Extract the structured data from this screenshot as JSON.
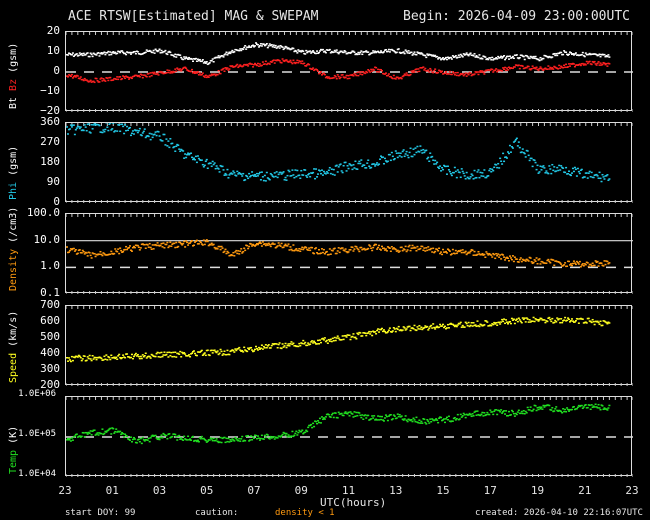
{
  "header": {
    "title": "ACE RTSW[Estimated] MAG & SWEPAM",
    "begin": "Begin: 2026-04-09 23:00:00UTC"
  },
  "panels": [
    {
      "id": "mag",
      "ylabel_parts": [
        {
          "text": "Bt",
          "color": "#ffffff"
        },
        {
          "text": "Bz",
          "color": "#ff2020"
        },
        {
          "text": "(gsm)",
          "color": "#ffffff"
        }
      ],
      "ticks": [
        "20",
        "10",
        "0",
        "−10",
        "−20"
      ]
    },
    {
      "id": "phi",
      "ylabel_parts": [
        {
          "text": "Phi",
          "color": "#22c8e6"
        },
        {
          "text": "(gsm)",
          "color": "#ffffff"
        }
      ],
      "ticks": [
        "360",
        "270",
        "180",
        "90",
        "0"
      ]
    },
    {
      "id": "density",
      "ylabel_parts": [
        {
          "text": "Density",
          "color": "#ff9a10"
        },
        {
          "text": "(/cm3)",
          "color": "#ffffff"
        }
      ],
      "ticks": [
        "100.0",
        "10.0",
        "1.0",
        "0.1"
      ]
    },
    {
      "id": "speed",
      "ylabel_parts": [
        {
          "text": "Speed",
          "color": "#ffff20"
        },
        {
          "text": "(km/s)",
          "color": "#ffffff"
        }
      ],
      "ticks": [
        "700",
        "600",
        "500",
        "400",
        "300",
        "200"
      ]
    },
    {
      "id": "temp",
      "ylabel_parts": [
        {
          "text": "Temp",
          "color": "#20e020"
        },
        {
          "text": "(K)",
          "color": "#ffffff"
        }
      ],
      "ticks": [
        "1.0E+06",
        "1.0E+05",
        "1.0E+04"
      ]
    }
  ],
  "xaxis": {
    "ticks": [
      "23",
      "01",
      "03",
      "05",
      "07",
      "09",
      "11",
      "13",
      "15",
      "17",
      "19",
      "21",
      "23"
    ],
    "title": "UTC(hours)"
  },
  "footer": {
    "start_doy": "start DOY:  99",
    "caution": "caution:",
    "density_note": "density < 1",
    "created": "created: 2026-04-10 22:16:07UTC"
  },
  "colors": {
    "bt": "#ffffff",
    "bz": "#ff2020",
    "phi": "#22c8e6",
    "density": "#ff9a10",
    "speed": "#ffff20",
    "temp": "#20e020"
  },
  "chart_data": [
    {
      "type": "scatter",
      "title": "Bt / Bz (gsm)",
      "ylabel": "nT",
      "ylim": [
        -20,
        20
      ],
      "x": [
        23,
        0,
        1,
        2,
        3,
        4,
        5,
        6,
        7,
        8,
        9,
        10,
        11,
        12,
        13,
        14,
        15,
        16,
        17,
        18,
        19,
        20,
        21,
        22
      ],
      "series": [
        {
          "name": "Bt",
          "values": [
            9,
            9,
            10,
            10,
            11,
            7,
            5,
            11,
            14,
            13,
            10,
            11,
            10,
            10,
            11,
            9,
            7,
            9,
            7,
            8,
            7,
            10,
            9,
            8
          ]
        },
        {
          "name": "Bz",
          "values": [
            -1,
            -4,
            -3,
            -2,
            0,
            2,
            -2,
            3,
            4,
            6,
            5,
            -2,
            -2,
            2,
            -3,
            2,
            0,
            -1,
            1,
            3,
            2,
            3,
            5,
            4
          ]
        }
      ]
    },
    {
      "type": "scatter",
      "title": "Phi (gsm)",
      "ylabel": "deg",
      "ylim": [
        0,
        360
      ],
      "x": [
        23,
        0,
        1,
        2,
        3,
        4,
        5,
        6,
        7,
        8,
        9,
        10,
        11,
        12,
        13,
        14,
        15,
        16,
        17,
        18,
        19,
        20,
        21,
        22
      ],
      "values": [
        330,
        340,
        345,
        320,
        300,
        220,
        180,
        130,
        125,
        125,
        135,
        135,
        175,
        180,
        220,
        240,
        150,
        130,
        140,
        280,
        150,
        160,
        125,
        120
      ]
    },
    {
      "type": "scatter",
      "title": "Density (/cm3)",
      "ylabel": "/cm3",
      "ylim": [
        0.1,
        100
      ],
      "scale": "log",
      "x": [
        23,
        0,
        1,
        2,
        3,
        4,
        5,
        6,
        7,
        8,
        9,
        10,
        11,
        12,
        13,
        14,
        15,
        16,
        17,
        18,
        19,
        20,
        21,
        22
      ],
      "values": [
        5,
        3,
        4,
        6,
        7,
        8,
        9,
        3,
        9,
        7,
        5,
        4,
        5,
        6,
        5,
        6,
        4,
        4,
        3,
        2.2,
        1.8,
        1.5,
        1.4,
        1.6
      ]
    },
    {
      "type": "scatter",
      "title": "Speed (km/s)",
      "ylabel": "km/s",
      "ylim": [
        200,
        700
      ],
      "x": [
        23,
        0,
        1,
        2,
        3,
        4,
        5,
        6,
        7,
        8,
        9,
        10,
        11,
        12,
        13,
        14,
        15,
        16,
        17,
        18,
        19,
        20,
        21,
        22
      ],
      "values": [
        375,
        380,
        385,
        390,
        400,
        405,
        410,
        420,
        440,
        455,
        470,
        490,
        510,
        540,
        560,
        570,
        580,
        590,
        600,
        610,
        620,
        615,
        610,
        595
      ]
    },
    {
      "type": "scatter",
      "title": "Temp (K)",
      "ylabel": "K",
      "ylim": [
        10000,
        1000000
      ],
      "scale": "log",
      "x": [
        23,
        0,
        1,
        2,
        3,
        4,
        5,
        6,
        7,
        8,
        9,
        10,
        11,
        12,
        13,
        14,
        15,
        16,
        17,
        18,
        19,
        20,
        21,
        22
      ],
      "values": [
        90000,
        130000,
        150000,
        80000,
        110000,
        100000,
        90000,
        85000,
        100000,
        110000,
        140000,
        350000,
        400000,
        300000,
        330000,
        260000,
        280000,
        370000,
        450000,
        400000,
        600000,
        480000,
        600000,
        550000
      ]
    }
  ]
}
